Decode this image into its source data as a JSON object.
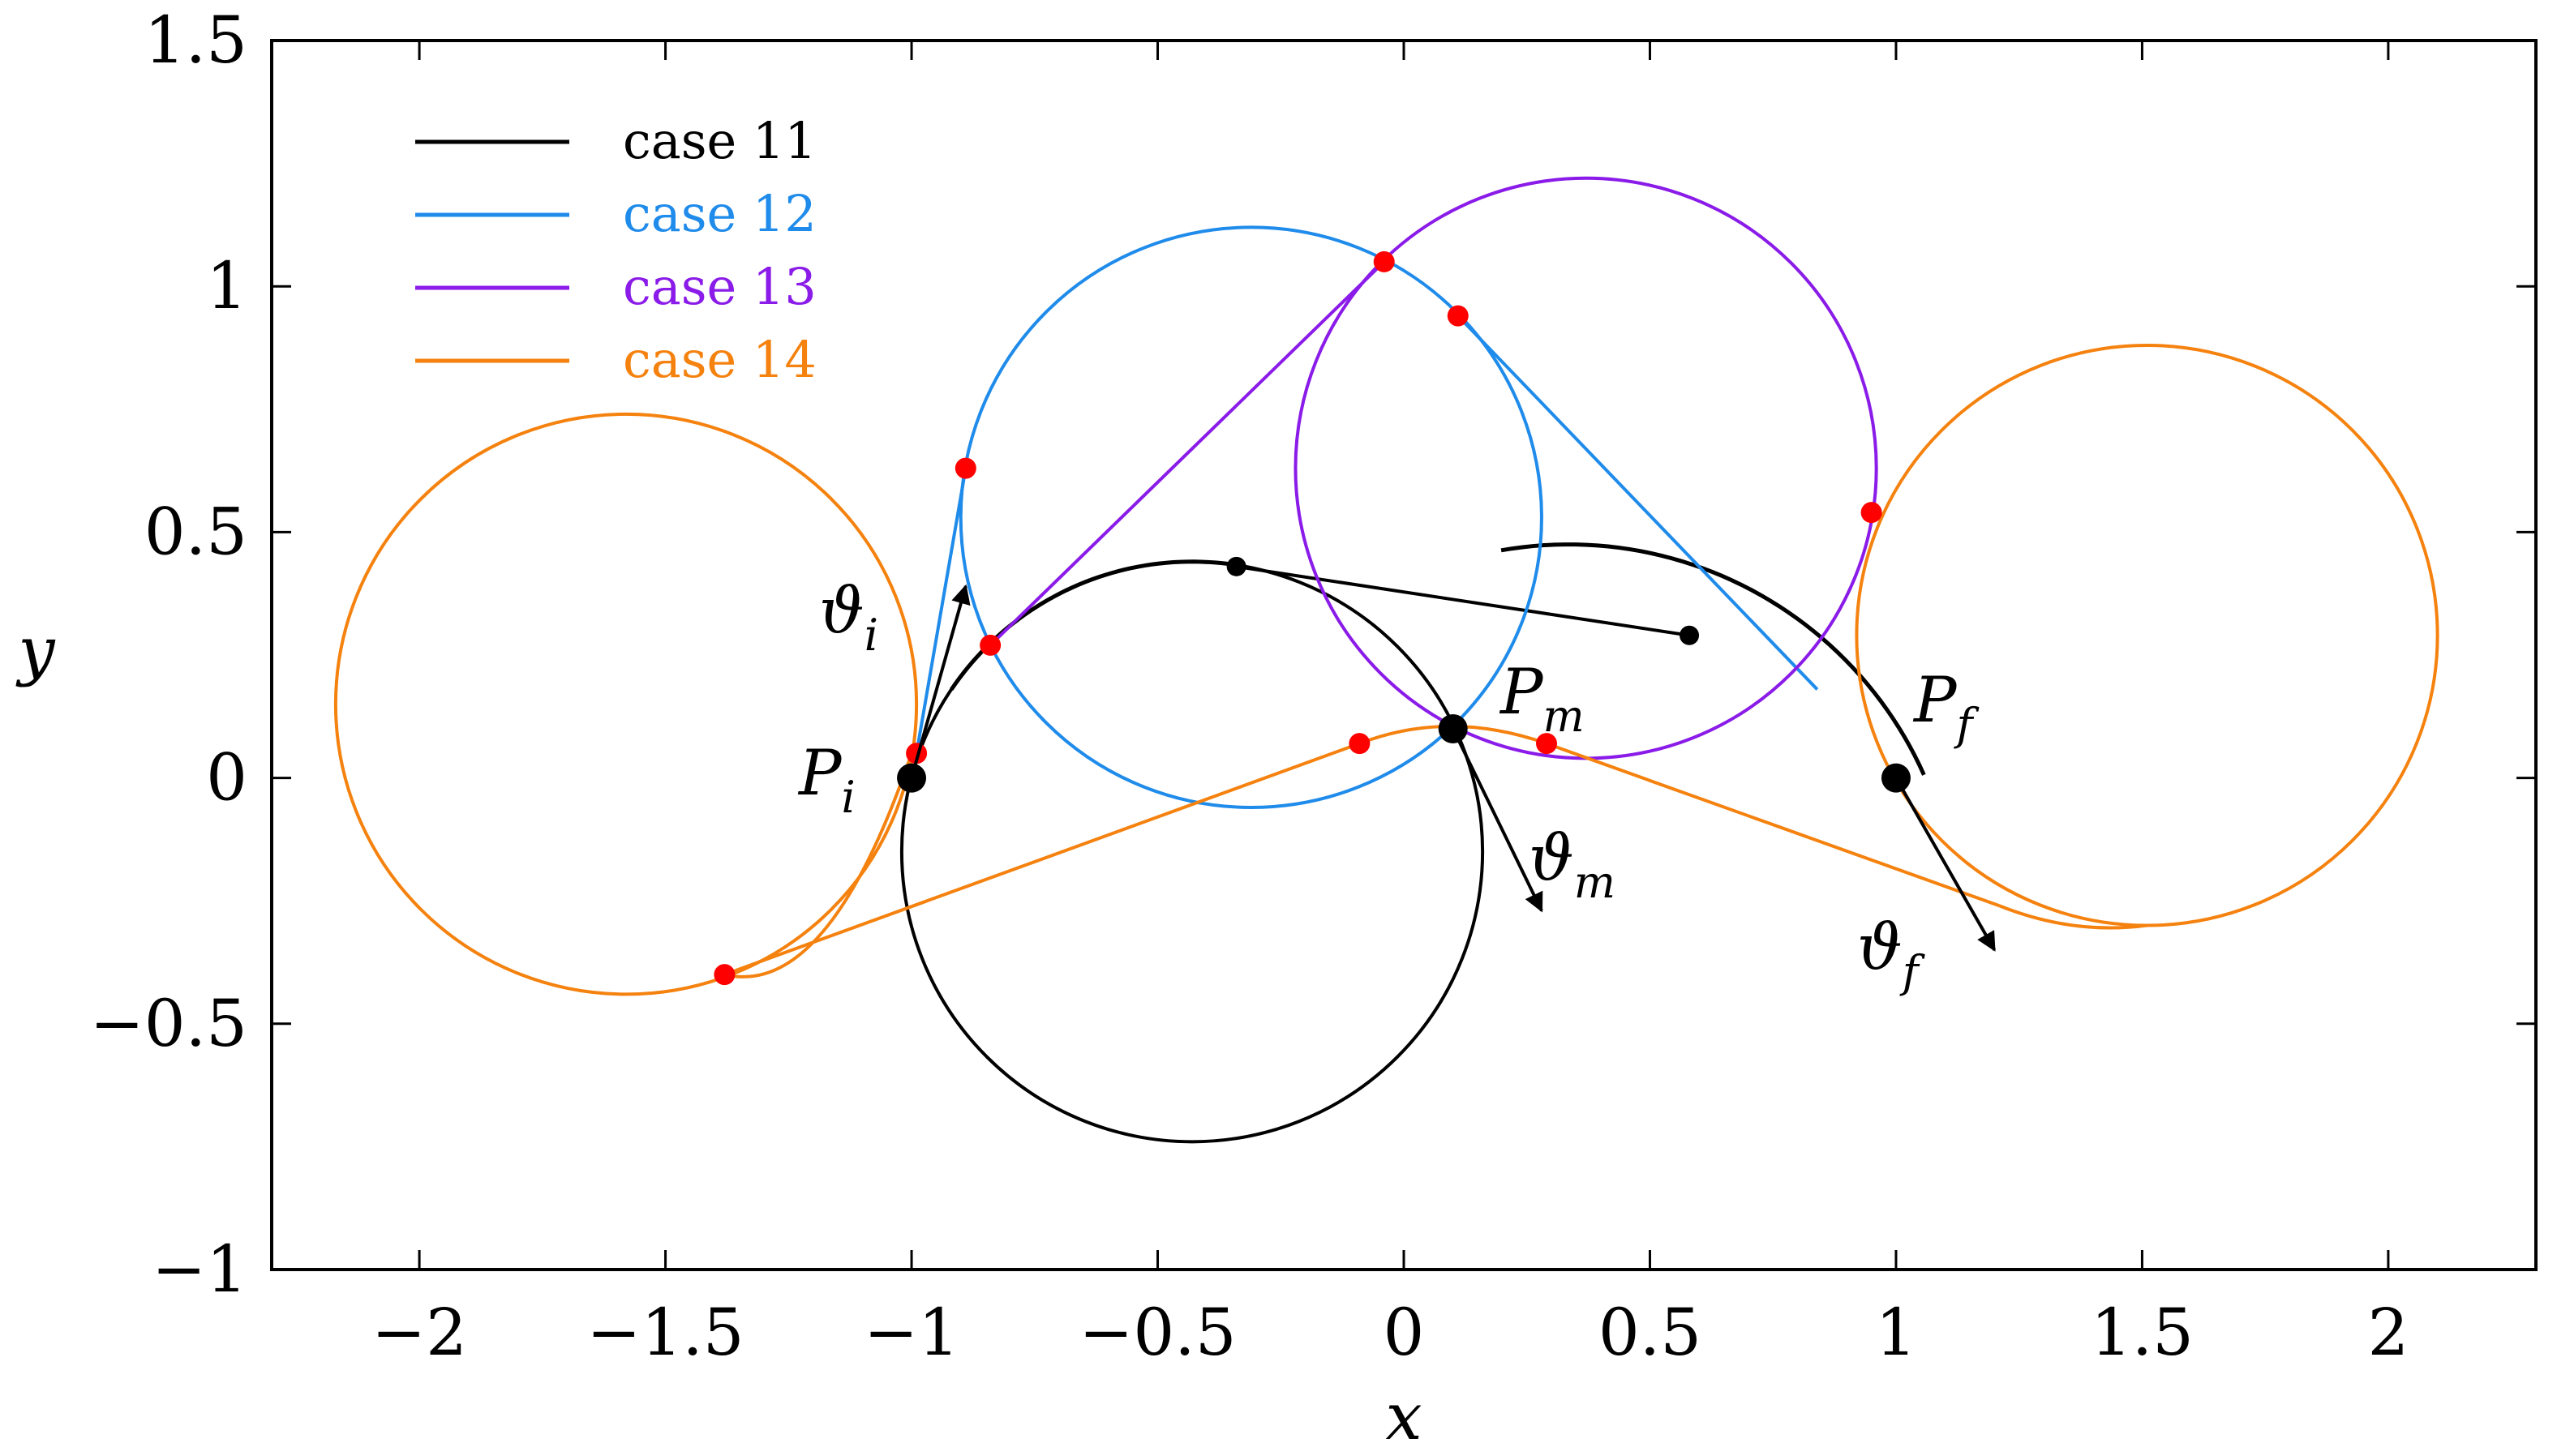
{
  "chart_data": {
    "type": "line",
    "title": "",
    "xlabel": "x",
    "ylabel": "y",
    "xlim": [
      -2.3,
      2.3
    ],
    "ylim": [
      -1,
      1.5
    ],
    "xticks": [
      -2,
      -1.5,
      -1,
      -0.5,
      0,
      0.5,
      1,
      1.5,
      2
    ],
    "yticks": [
      -1,
      -0.5,
      0,
      0.5,
      1,
      1.5
    ],
    "xtick_labels": [
      "−2",
      "−1.5",
      "−1",
      "−0.5",
      "0",
      "0.5",
      "1",
      "1.5",
      "2"
    ],
    "ytick_labels": [
      "−1",
      "−0.5",
      "0",
      "0.5",
      "1",
      "1.5"
    ],
    "grid": false,
    "legend_position": "top-left",
    "series": [
      {
        "name": "case 11",
        "color": "#000000",
        "circles": [
          {
            "cx": -0.43,
            "cy": -0.15,
            "r": 0.59
          }
        ],
        "arcs": [
          {
            "cx": -0.43,
            "cy": -0.15,
            "r": 0.59,
            "from_deg": 146,
            "to_deg": 80
          },
          {
            "cx": 0.335,
            "cy": -0.315,
            "r": 0.79,
            "from_deg": 100,
            "to_deg": 24
          }
        ],
        "segments": [
          [
            [
              -0.34,
              0.43
            ],
            [
              0.58,
              0.29
            ]
          ]
        ],
        "markers": [
          [
            -0.34,
            0.43
          ],
          [
            0.58,
            0.29
          ]
        ]
      },
      {
        "name": "case 12",
        "color": "#1f8bea",
        "circles": [
          {
            "cx": -0.31,
            "cy": 0.53,
            "r": 0.59
          }
        ],
        "segments": [
          [
            [
              -0.99,
              0.05
            ],
            [
              -0.89,
              0.63
            ]
          ],
          [
            [
              0.11,
              0.94
            ],
            [
              0.84,
              0.18
            ]
          ]
        ],
        "markers": [
          [
            -0.89,
            0.63
          ],
          [
            0.11,
            0.94
          ]
        ]
      },
      {
        "name": "case 13",
        "color": "#8a1be8",
        "circles": [
          {
            "cx": 0.37,
            "cy": 0.63,
            "r": 0.59
          }
        ],
        "segments": [
          [
            [
              -0.84,
              0.27
            ],
            [
              -0.04,
              1.05
            ]
          ]
        ],
        "markers": [
          [
            -0.84,
            0.27
          ],
          [
            -0.04,
            1.05
          ],
          [
            0.95,
            0.54
          ]
        ]
      },
      {
        "name": "case 14",
        "color": "#f5820f",
        "circles": [
          {
            "cx": -1.58,
            "cy": 0.15,
            "r": 0.59
          },
          {
            "cx": 1.51,
            "cy": 0.29,
            "r": 0.59
          }
        ],
        "segments": [
          [
            [
              -1.38,
              -0.4
            ],
            [
              -0.09,
              0.07
            ]
          ],
          [
            [
              0.29,
              0.07
            ],
            [
              1.21,
              -0.26
            ]
          ]
        ],
        "curves": [
          [
            [
              -1.0,
              0.05
            ],
            [
              -1.17,
              -0.45
            ],
            [
              -1.38,
              -0.4
            ]
          ],
          [
            [
              -0.09,
              0.07
            ],
            [
              0.09,
              0.14
            ],
            [
              0.29,
              0.07
            ]
          ],
          [
            [
              1.21,
              -0.26
            ],
            [
              1.36,
              -0.32
            ],
            [
              1.51,
              -0.3
            ]
          ]
        ],
        "markers": [
          [
            -0.99,
            0.05
          ],
          [
            -1.38,
            -0.4
          ],
          [
            -0.09,
            0.07
          ],
          [
            0.29,
            0.07
          ]
        ]
      }
    ],
    "points": [
      {
        "name": "P_i",
        "x": -1.0,
        "y": 0.0
      },
      {
        "name": "P_m",
        "x": 0.1,
        "y": 0.1
      },
      {
        "name": "P_f",
        "x": 1.0,
        "y": 0.0
      }
    ],
    "direction_arrows": [
      {
        "name": "theta_i",
        "from": [
          -1.0,
          0.0
        ],
        "to": [
          -0.89,
          0.39
        ]
      },
      {
        "name": "theta_m",
        "from": [
          0.1,
          0.1
        ],
        "to": [
          0.28,
          -0.27
        ]
      },
      {
        "name": "theta_f",
        "from": [
          1.0,
          0.0
        ],
        "to": [
          1.2,
          -0.35
        ]
      }
    ],
    "annotations": {
      "theta_i": {
        "base": "ϑ",
        "sub": "i"
      },
      "theta_m": {
        "base": "ϑ",
        "sub": "m"
      },
      "theta_f": {
        "base": "ϑ",
        "sub": "f"
      },
      "P_i": {
        "base": "P",
        "sub": "i"
      },
      "P_m": {
        "base": "P",
        "sub": "m"
      },
      "P_f": {
        "base": "P",
        "sub": "f"
      }
    },
    "marker_color": "#ff0000"
  }
}
